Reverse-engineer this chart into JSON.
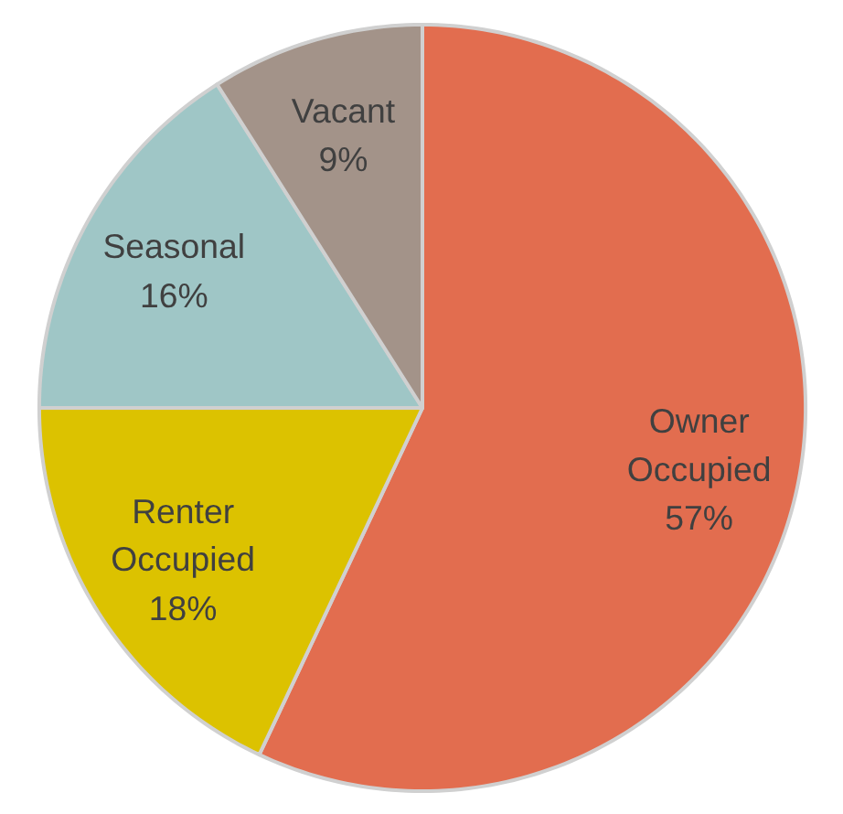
{
  "chart_data": {
    "type": "pie",
    "categories": [
      "Owner Occupied",
      "Renter Occupied",
      "Seasonal",
      "Vacant"
    ],
    "values": [
      57,
      18,
      16,
      9
    ],
    "value_labels": [
      "57%",
      "18%",
      "16%",
      "9%"
    ],
    "colors": [
      "#e26d4f",
      "#dcc200",
      "#9fc6c6",
      "#a39389"
    ]
  }
}
